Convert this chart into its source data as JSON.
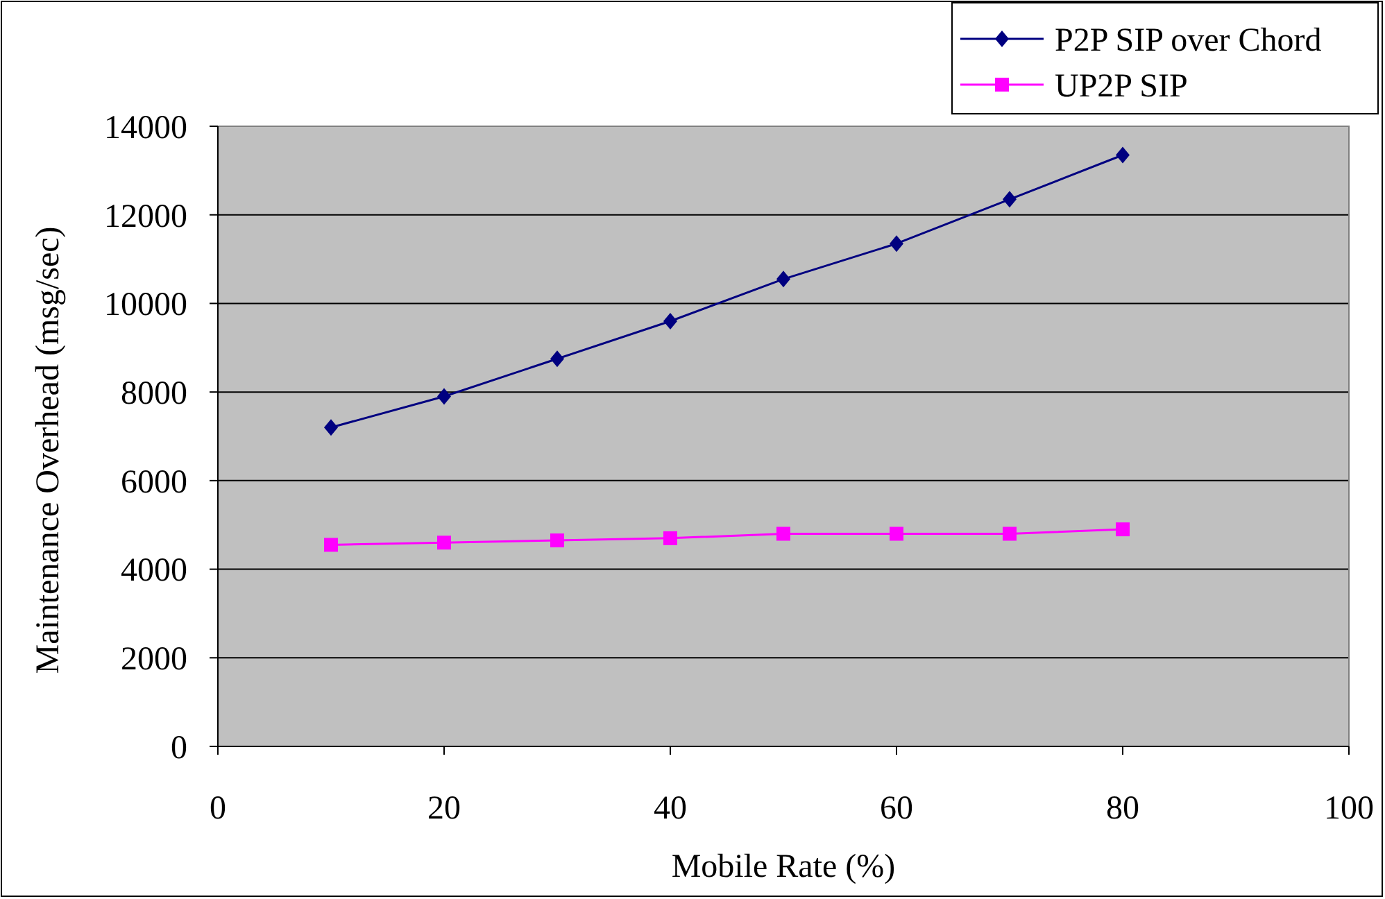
{
  "chart_data": {
    "type": "line",
    "xlabel": "Mobile Rate (%)",
    "ylabel": "Maintenance Overhead (msg/sec)",
    "x": [
      10,
      20,
      30,
      40,
      50,
      60,
      70,
      80
    ],
    "series": [
      {
        "name": "P2P SIP over Chord",
        "color": "#000080",
        "marker": "diamond",
        "values": [
          7200,
          7900,
          8750,
          9600,
          10550,
          11350,
          12350,
          13350
        ]
      },
      {
        "name": "UP2P SIP",
        "color": "#ff00ff",
        "marker": "square",
        "values": [
          4550,
          4600,
          4650,
          4700,
          4800,
          4800,
          4800,
          4900
        ]
      }
    ],
    "xlim": [
      0,
      100
    ],
    "xticks": [
      0,
      20,
      40,
      60,
      80,
      100
    ],
    "ylim": [
      0,
      14000
    ],
    "yticks": [
      0,
      2000,
      4000,
      6000,
      8000,
      10000,
      12000,
      14000
    ],
    "grid": "y",
    "legend": "top right"
  }
}
